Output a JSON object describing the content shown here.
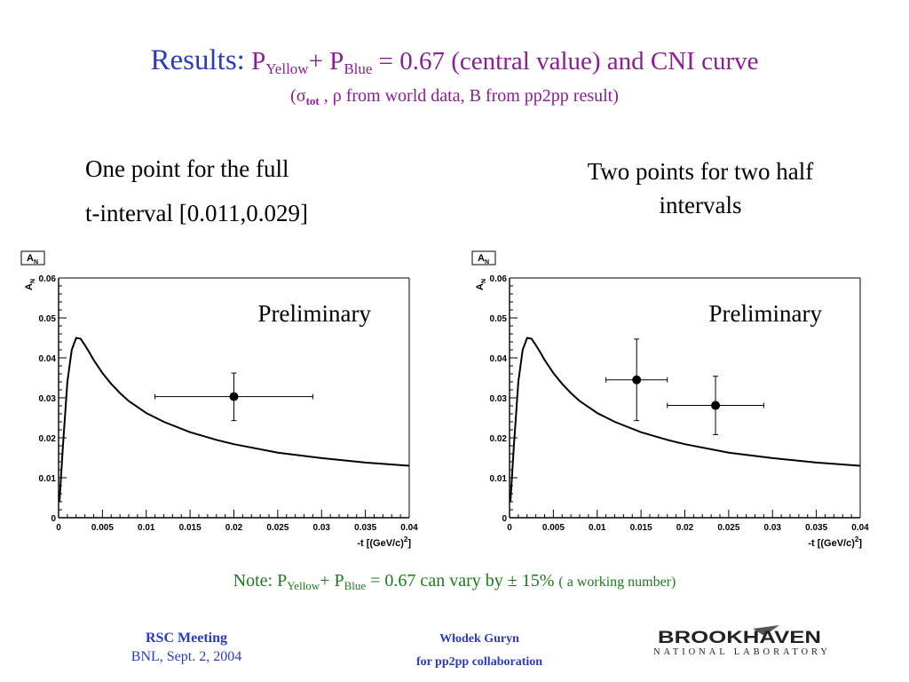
{
  "title": {
    "lead": "Results:",
    "p1": "P",
    "sub1": "Yellow",
    "plus": "+ P",
    "sub2": "Blue",
    "rest": " = 0.67 (central value) and CNI curve"
  },
  "subtitle": {
    "open": "(σ",
    "sub": "tot",
    "rest": " , ρ from world data, B from pp2pp result)"
  },
  "left_heading": {
    "line1": "One point for the full",
    "line2": "t-interval [0.011,0.029]"
  },
  "right_heading": {
    "line1": "Two points for two half",
    "line2": "intervals"
  },
  "chart_data": [
    {
      "type": "scatter",
      "legend_box": "A",
      "legend_box_sub": "N",
      "ylabel": "A",
      "ylabel_sub": "N",
      "xlabel": "-t [(GeV/c)",
      "xlabel_sup": "2",
      "xlabel_end": "]",
      "xlim": [
        0,
        0.04
      ],
      "ylim": [
        0,
        0.06
      ],
      "xticks": [
        "0",
        "0.005",
        "0.01",
        "0.015",
        "0.02",
        "0.025",
        "0.03",
        "0.035",
        "0.04"
      ],
      "yticks": [
        "0",
        "0.01",
        "0.02",
        "0.03",
        "0.04",
        "0.05",
        "0.06"
      ],
      "annotation": "Preliminary",
      "curve": {
        "x": [
          0.0001,
          0.0005,
          0.001,
          0.0015,
          0.002,
          0.0025,
          0.003,
          0.0035,
          0.004,
          0.005,
          0.006,
          0.007,
          0.008,
          0.01,
          0.012,
          0.015,
          0.018,
          0.02,
          0.025,
          0.03,
          0.035,
          0.04
        ],
        "y": [
          0.004,
          0.018,
          0.034,
          0.042,
          0.045,
          0.0448,
          0.0432,
          0.0414,
          0.0395,
          0.0362,
          0.0335,
          0.0312,
          0.0292,
          0.0262,
          0.024,
          0.0214,
          0.0195,
          0.0184,
          0.0163,
          0.0149,
          0.0138,
          0.013
        ]
      },
      "points": [
        {
          "x": 0.02,
          "y": 0.0303,
          "xerr_low": 0.011,
          "xerr_high": 0.029,
          "yerr_low": 0.0243,
          "yerr_high": 0.0362
        }
      ]
    },
    {
      "type": "scatter",
      "legend_box": "A",
      "legend_box_sub": "N",
      "ylabel": "A",
      "ylabel_sub": "N",
      "xlabel": "-t [(GeV/c)",
      "xlabel_sup": "2",
      "xlabel_end": "]",
      "xlim": [
        0,
        0.04
      ],
      "ylim": [
        0,
        0.06
      ],
      "xticks": [
        "0",
        "0.005",
        "0.01",
        "0.015",
        "0.02",
        "0.025",
        "0.03",
        "0.035",
        "0.04"
      ],
      "yticks": [
        "0",
        "0.01",
        "0.02",
        "0.03",
        "0.04",
        "0.05",
        "0.06"
      ],
      "annotation": "Preliminary",
      "curve": {
        "x": [
          0.0001,
          0.0005,
          0.001,
          0.0015,
          0.002,
          0.0025,
          0.003,
          0.0035,
          0.004,
          0.005,
          0.006,
          0.007,
          0.008,
          0.01,
          0.012,
          0.015,
          0.018,
          0.02,
          0.025,
          0.03,
          0.035,
          0.04
        ],
        "y": [
          0.004,
          0.018,
          0.034,
          0.042,
          0.045,
          0.0448,
          0.0432,
          0.0414,
          0.0395,
          0.0362,
          0.0335,
          0.0312,
          0.0292,
          0.0262,
          0.024,
          0.0214,
          0.0195,
          0.0184,
          0.0163,
          0.0149,
          0.0138,
          0.013
        ]
      },
      "points": [
        {
          "x": 0.0145,
          "y": 0.0345,
          "xerr_low": 0.011,
          "xerr_high": 0.018,
          "yerr_low": 0.0243,
          "yerr_high": 0.0447
        },
        {
          "x": 0.0235,
          "y": 0.0281,
          "xerr_low": 0.018,
          "xerr_high": 0.029,
          "yerr_low": 0.0208,
          "yerr_high": 0.0354
        }
      ]
    }
  ],
  "note": {
    "pre": "Note: P",
    "sub1": "Yellow",
    "plus": "+ P",
    "sub2": "Blue",
    "rest": " = 0.67 can vary by ± 15% ",
    "small": "( a working number)"
  },
  "footer": {
    "meeting": "RSC Meeting",
    "place_date": "BNL, Sept. 2, 2004",
    "author": "Włodek Guryn",
    "collab": "for pp2pp collaboration"
  },
  "logo": {
    "name": "BROOKHAVEN",
    "sub": "NATIONAL LABORATORY"
  },
  "colors": {
    "title_lead": "#2a3bbf",
    "title": "#8a1f95",
    "note": "#1c7a1c",
    "footer": "#2a3bbf"
  }
}
